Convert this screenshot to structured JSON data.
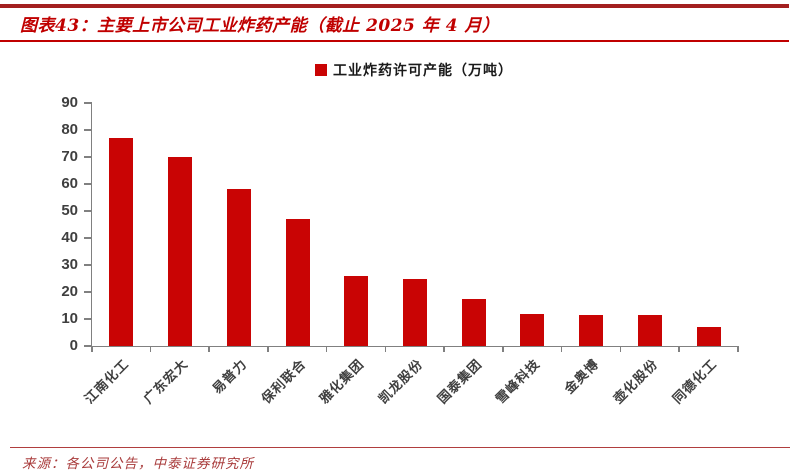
{
  "header": {
    "title": "图表43：主要上市公司工业炸药产能（截止 2025 年 4 月）"
  },
  "footer": {
    "source": "来源：各公司公告，中泰证券研究所"
  },
  "colors": {
    "bar_red": "#C90404",
    "title_red": "#C00000",
    "top_rule_red": "#A32020",
    "title_rule_red": "#C00000",
    "footer_rule_red": "#B03E3E",
    "source_red": "#A93C3C",
    "axis_gray": "#808080",
    "label_gray": "#3F3F3F"
  },
  "chart_data": {
    "type": "bar",
    "title": "",
    "legend": "工业炸药许可产能（万吨）",
    "legend_position": "top-center",
    "categories": [
      "江南化工",
      "广东宏大",
      "易普力",
      "保利联合",
      "雅化集团",
      "凯龙股份",
      "国泰集团",
      "雪峰科技",
      "金奥博",
      "壶化股份",
      "同德化工"
    ],
    "values": [
      77,
      70,
      58,
      47,
      26,
      25,
      17.5,
      12,
      11.5,
      11.5,
      7
    ],
    "ylabel": "",
    "xlabel": "",
    "ylim": [
      0,
      90
    ],
    "ytick_step": 10,
    "grid": false,
    "unit": "万吨"
  }
}
